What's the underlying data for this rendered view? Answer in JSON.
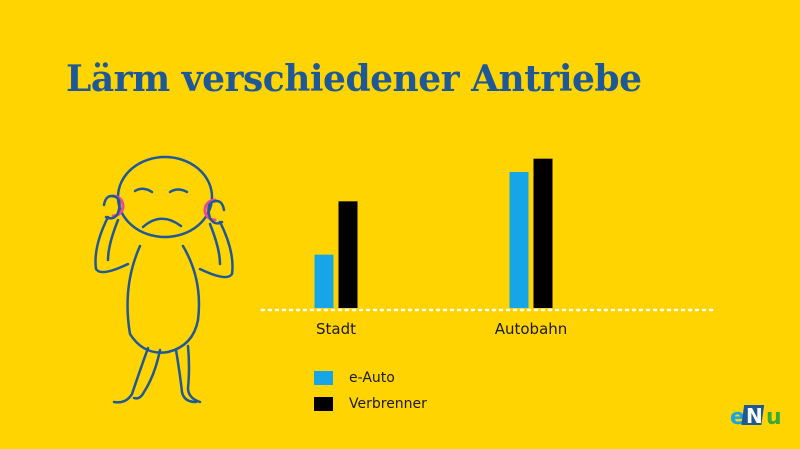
{
  "title": "Lärm verschiedener Antriebe",
  "colors": {
    "background": "#FFD400",
    "title": "#1F5896",
    "figure_stroke": "#1F5896",
    "figure_ear": "#E9489B",
    "baseline": "#FFFFFF"
  },
  "chart_data": {
    "type": "bar",
    "title": "Lärm verschiedener Antriebe",
    "categories": [
      "Stadt",
      "Autobahn"
    ],
    "series": [
      {
        "name": "e-Auto",
        "color": "#16A6E8",
        "values": [
          1.0,
          2.55
        ]
      },
      {
        "name": "Verbrenner",
        "color": "#000000",
        "values": [
          2.0,
          2.8
        ]
      }
    ],
    "ylim": [
      0,
      3
    ],
    "grid": false,
    "legend": "bottom-left"
  },
  "logo": {
    "icon": "enu-logo"
  }
}
